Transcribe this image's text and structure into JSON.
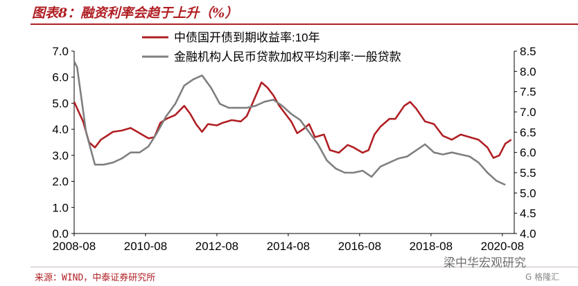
{
  "figure_title": "图表8：融资利率会趋于上升（%）",
  "source_note": "来源：WIND，中泰证券研究所",
  "watermark": "梁中华宏观研究",
  "watermark_sub": "G 格隆汇",
  "chart_data": {
    "type": "line",
    "left_axis": {
      "ylim": [
        0,
        7
      ],
      "ticks": [
        "0.0",
        "1.0",
        "2.0",
        "3.0",
        "4.0",
        "5.0",
        "6.0",
        "7.0"
      ]
    },
    "right_axis": {
      "ylim": [
        4,
        8.5
      ],
      "ticks": [
        "4.0",
        "4.5",
        "5.0",
        "5.5",
        "6.0",
        "6.5",
        "7.0",
        "7.5",
        "8.0",
        "8.5"
      ]
    },
    "x_ticks": [
      "2008-08",
      "2010-08",
      "2012-08",
      "2014-08",
      "2016-08",
      "2018-08",
      "2020-08"
    ],
    "x_range": [
      "2008-08",
      "2020-12"
    ],
    "series": [
      {
        "name": "中债国开债到期收益率:10年",
        "axis": "left",
        "color": "#b01e23",
        "points": [
          [
            "2008-08",
            5.05
          ],
          [
            "2008-11",
            4.3
          ],
          [
            "2009-01",
            3.5
          ],
          [
            "2009-03",
            3.3
          ],
          [
            "2009-05",
            3.6
          ],
          [
            "2009-07",
            3.75
          ],
          [
            "2009-09",
            3.9
          ],
          [
            "2009-12",
            3.95
          ],
          [
            "2010-03",
            4.05
          ],
          [
            "2010-06",
            3.85
          ],
          [
            "2010-09",
            3.65
          ],
          [
            "2010-11",
            3.7
          ],
          [
            "2011-01",
            4.25
          ],
          [
            "2011-03",
            4.4
          ],
          [
            "2011-06",
            4.55
          ],
          [
            "2011-09",
            4.9
          ],
          [
            "2011-11",
            4.6
          ],
          [
            "2012-01",
            4.2
          ],
          [
            "2012-03",
            3.9
          ],
          [
            "2012-05",
            4.2
          ],
          [
            "2012-08",
            4.15
          ],
          [
            "2012-10",
            4.25
          ],
          [
            "2013-01",
            4.35
          ],
          [
            "2013-04",
            4.3
          ],
          [
            "2013-06",
            4.5
          ],
          [
            "2013-08",
            5.0
          ],
          [
            "2013-11",
            5.8
          ],
          [
            "2014-01",
            5.6
          ],
          [
            "2014-03",
            5.3
          ],
          [
            "2014-05",
            4.9
          ],
          [
            "2014-07",
            4.6
          ],
          [
            "2014-09",
            4.3
          ],
          [
            "2014-11",
            3.85
          ],
          [
            "2015-01",
            4.0
          ],
          [
            "2015-03",
            4.2
          ],
          [
            "2015-05",
            3.7
          ],
          [
            "2015-08",
            3.8
          ],
          [
            "2015-10",
            3.2
          ],
          [
            "2016-01",
            3.1
          ],
          [
            "2016-04",
            3.4
          ],
          [
            "2016-06",
            3.3
          ],
          [
            "2016-09",
            3.1
          ],
          [
            "2016-11",
            3.2
          ],
          [
            "2017-01",
            3.8
          ],
          [
            "2017-03",
            4.1
          ],
          [
            "2017-06",
            4.4
          ],
          [
            "2017-08",
            4.4
          ],
          [
            "2017-11",
            4.9
          ],
          [
            "2018-01",
            5.05
          ],
          [
            "2018-03",
            4.8
          ],
          [
            "2018-06",
            4.3
          ],
          [
            "2018-09",
            4.2
          ],
          [
            "2018-12",
            3.75
          ],
          [
            "2019-03",
            3.6
          ],
          [
            "2019-06",
            3.8
          ],
          [
            "2019-09",
            3.7
          ],
          [
            "2019-12",
            3.6
          ],
          [
            "2020-03",
            3.3
          ],
          [
            "2020-05",
            2.9
          ],
          [
            "2020-07",
            3.0
          ],
          [
            "2020-09",
            3.45
          ],
          [
            "2020-11",
            3.6
          ]
        ]
      },
      {
        "name": "金融机构人民币贷款加权平均利率:一般贷款",
        "axis": "right",
        "color": "#7f7f7f",
        "points": [
          [
            "2008-08",
            8.25
          ],
          [
            "2008-09",
            8.1
          ],
          [
            "2008-12",
            6.5
          ],
          [
            "2009-03",
            5.7
          ],
          [
            "2009-06",
            5.7
          ],
          [
            "2009-09",
            5.75
          ],
          [
            "2009-12",
            5.85
          ],
          [
            "2010-03",
            6.0
          ],
          [
            "2010-06",
            6.0
          ],
          [
            "2010-09",
            6.15
          ],
          [
            "2010-12",
            6.5
          ],
          [
            "2011-03",
            6.9
          ],
          [
            "2011-06",
            7.2
          ],
          [
            "2011-09",
            7.65
          ],
          [
            "2011-12",
            7.8
          ],
          [
            "2012-03",
            7.9
          ],
          [
            "2012-06",
            7.6
          ],
          [
            "2012-09",
            7.2
          ],
          [
            "2012-12",
            7.1
          ],
          [
            "2013-03",
            7.1
          ],
          [
            "2013-06",
            7.1
          ],
          [
            "2013-09",
            7.15
          ],
          [
            "2013-12",
            7.25
          ],
          [
            "2014-03",
            7.3
          ],
          [
            "2014-06",
            7.15
          ],
          [
            "2014-09",
            6.95
          ],
          [
            "2014-12",
            6.8
          ],
          [
            "2015-03",
            6.5
          ],
          [
            "2015-06",
            6.2
          ],
          [
            "2015-09",
            5.8
          ],
          [
            "2015-12",
            5.6
          ],
          [
            "2016-03",
            5.5
          ],
          [
            "2016-06",
            5.5
          ],
          [
            "2016-09",
            5.55
          ],
          [
            "2016-12",
            5.4
          ],
          [
            "2017-03",
            5.65
          ],
          [
            "2017-06",
            5.75
          ],
          [
            "2017-09",
            5.85
          ],
          [
            "2017-12",
            5.9
          ],
          [
            "2018-03",
            6.05
          ],
          [
            "2018-06",
            6.2
          ],
          [
            "2018-09",
            6.0
          ],
          [
            "2018-12",
            5.95
          ],
          [
            "2019-03",
            6.0
          ],
          [
            "2019-06",
            5.95
          ],
          [
            "2019-09",
            5.9
          ],
          [
            "2019-12",
            5.75
          ],
          [
            "2020-03",
            5.5
          ],
          [
            "2020-06",
            5.3
          ],
          [
            "2020-09",
            5.2
          ]
        ]
      }
    ]
  }
}
